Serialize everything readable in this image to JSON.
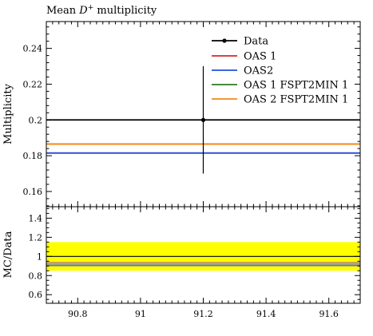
{
  "chart_data": {
    "title": "Mean D+ multiplicity",
    "title_parts": {
      "pre": "Mean ",
      "letter": "D",
      "sup": "+",
      "post": " multiplicity"
    },
    "type": "line",
    "x_range": [
      90.7,
      91.7
    ],
    "x_ticks": [
      90.8,
      91.0,
      91.2,
      91.4,
      91.6
    ],
    "x_tick_labels": [
      "90.8",
      "91",
      "91.2",
      "91.4",
      "91.6"
    ],
    "main": {
      "ylabel": "Multiplicity",
      "y_range": [
        0.1515,
        0.255
      ],
      "y_ticks": [
        0.16,
        0.18,
        0.2,
        0.22,
        0.24
      ],
      "y_tick_labels": [
        "0.16",
        "0.18",
        "0.2",
        "0.22",
        "0.24"
      ],
      "data_point": {
        "label": "Data",
        "x": 91.2,
        "y": 0.2,
        "y_err_low": 0.03,
        "y_err_high": 0.03,
        "color": "#000000"
      },
      "series": [
        {
          "name": "OAS 1",
          "y": 0.1815,
          "color": "#d62728"
        },
        {
          "name": "OAS2",
          "y": 0.1815,
          "color": "#1f4fe0"
        },
        {
          "name": "OAS 1 FSPT2MIN 1",
          "y": 0.1865,
          "color": "#2e7d1f"
        },
        {
          "name": "OAS 2 FSPT2MIN 1",
          "y": 0.1865,
          "color": "#f28a1a"
        }
      ],
      "legend_position": "top-right"
    },
    "ratio": {
      "ylabel": "MC/Data",
      "y_range": [
        0.51,
        1.52
      ],
      "y_ticks": [
        0.6,
        0.8,
        1.0,
        1.2,
        1.4
      ],
      "y_tick_labels": [
        "0.6",
        "0.8",
        "1",
        "1.2",
        "1.4"
      ],
      "band": {
        "low": 0.85,
        "high": 1.15,
        "color": "#ffff00"
      },
      "reference_line": 1.0,
      "series": [
        {
          "name": "OAS 1",
          "y": 0.9075,
          "color": "#d62728"
        },
        {
          "name": "OAS2",
          "y": 0.9075,
          "color": "#1f4fe0"
        },
        {
          "name": "OAS 1 FSPT2MIN 1",
          "y": 0.9325,
          "color": "#2e7d1f"
        },
        {
          "name": "OAS 2 FSPT2MIN 1",
          "y": 0.9325,
          "color": "#f28a1a"
        }
      ]
    }
  }
}
